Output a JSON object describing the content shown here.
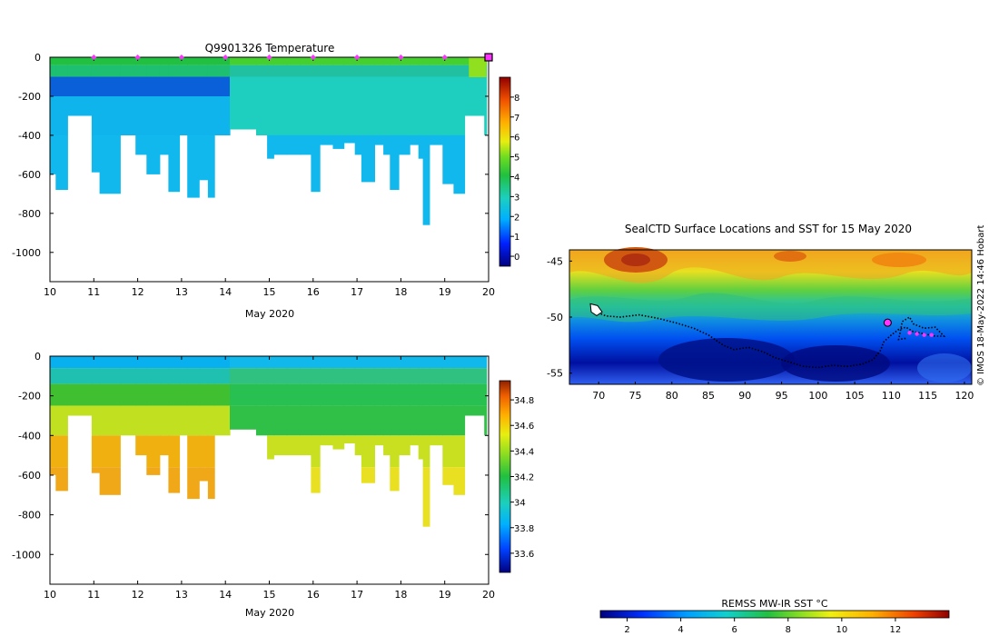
{
  "colors": {
    "accent_marker": "#ff33ff",
    "frame": "#000000"
  },
  "chart_data": [
    {
      "id": "temperature",
      "type": "heatmap",
      "title": "Q9901326  Temperature",
      "xlabel": "May 2020",
      "ylabel": "",
      "x_ticks": [
        10,
        11,
        12,
        13,
        14,
        15,
        16,
        17,
        18,
        19,
        20
      ],
      "y_ticks": [
        0,
        -200,
        -400,
        -600,
        -800,
        -1000
      ],
      "xlim": [
        10,
        20
      ],
      "ylim": [
        -1150,
        0
      ],
      "colorbar": {
        "range": [
          -0.5,
          9
        ],
        "ticks": [
          0,
          1,
          2,
          3,
          4,
          5,
          6,
          7,
          8
        ]
      },
      "profile_markers_x": [
        11,
        12,
        13,
        14,
        15,
        16,
        17,
        18,
        19
      ],
      "current_marker_x": 20,
      "profiles": [
        {
          "t": 10.0,
          "d": 600
        },
        {
          "t": 10.13,
          "d": 680
        },
        {
          "t": 10.4,
          "d": 300
        },
        {
          "t": 10.95,
          "d": 590
        },
        {
          "t": 11.13,
          "d": 700
        },
        {
          "t": 11.6,
          "d": 400
        },
        {
          "t": 11.95,
          "d": 500
        },
        {
          "t": 12.2,
          "d": 600
        },
        {
          "t": 12.5,
          "d": 500
        },
        {
          "t": 12.7,
          "d": 690
        },
        {
          "t": 12.95,
          "d": 400
        },
        {
          "t": 13.13,
          "d": 720
        },
        {
          "t": 13.4,
          "d": 630
        },
        {
          "t": 13.6,
          "d": 720
        },
        {
          "t": 13.75,
          "d": 400
        },
        {
          "t": 14.1,
          "d": 370
        },
        {
          "t": 14.7,
          "d": 400
        },
        {
          "t": 14.95,
          "d": 520
        },
        {
          "t": 15.1,
          "d": 500
        },
        {
          "t": 15.4,
          "d": 500
        },
        {
          "t": 15.7,
          "d": 500
        },
        {
          "t": 15.95,
          "d": 690
        },
        {
          "t": 16.15,
          "d": 450
        },
        {
          "t": 16.45,
          "d": 470
        },
        {
          "t": 16.7,
          "d": 440
        },
        {
          "t": 16.95,
          "d": 500
        },
        {
          "t": 17.1,
          "d": 640
        },
        {
          "t": 17.4,
          "d": 450
        },
        {
          "t": 17.6,
          "d": 500
        },
        {
          "t": 17.75,
          "d": 680
        },
        {
          "t": 17.95,
          "d": 500
        },
        {
          "t": 18.2,
          "d": 450
        },
        {
          "t": 18.4,
          "d": 520
        },
        {
          "t": 18.5,
          "d": 860
        },
        {
          "t": 18.65,
          "d": 450
        },
        {
          "t": 18.95,
          "d": 650
        },
        {
          "t": 19.2,
          "d": 700
        },
        {
          "t": 19.45,
          "d": 300
        },
        {
          "t": 19.9,
          "d": 400
        }
      ]
    },
    {
      "id": "salinity",
      "type": "heatmap",
      "title": "",
      "xlabel": "May 2020",
      "ylabel": "",
      "x_ticks": [
        10,
        11,
        12,
        13,
        14,
        15,
        16,
        17,
        18,
        19,
        20
      ],
      "y_ticks": [
        0,
        -200,
        -400,
        -600,
        -800,
        -1000
      ],
      "xlim": [
        10,
        20
      ],
      "ylim": [
        -1150,
        0
      ],
      "colorbar": {
        "range": [
          33.45,
          34.95
        ],
        "ticks": [
          33.6,
          33.8,
          34,
          34.2,
          34.4,
          34.6,
          34.8
        ]
      }
    },
    {
      "id": "sst_map",
      "type": "heatmap",
      "title": "SealCTD Surface Locations and SST for 15 May 2020",
      "xlabel": "",
      "ylabel": "",
      "x_ticks": [
        70,
        75,
        80,
        85,
        90,
        95,
        100,
        105,
        110,
        115,
        120
      ],
      "y_ticks": [
        -45,
        -50,
        -55
      ],
      "xlim": [
        66,
        121
      ],
      "ylim": [
        -56,
        -44
      ],
      "colorbar": {
        "label": "REMSS MW-IR SST °C",
        "range": [
          1,
          14
        ],
        "ticks": [
          2,
          4,
          6,
          8,
          10,
          12
        ]
      },
      "track": [
        [
          69.5,
          -49.5
        ],
        [
          71.0,
          -49.9
        ],
        [
          73.0,
          -50.0
        ],
        [
          75.5,
          -49.8
        ],
        [
          78.0,
          -50.1
        ],
        [
          80.5,
          -50.5
        ],
        [
          83.0,
          -51.0
        ],
        [
          85.0,
          -51.6
        ],
        [
          87.0,
          -52.5
        ],
        [
          88.5,
          -52.9
        ],
        [
          90.5,
          -52.7
        ],
        [
          92.5,
          -53.1
        ],
        [
          94.0,
          -53.6
        ],
        [
          96.0,
          -54.0
        ],
        [
          98.0,
          -54.4
        ],
        [
          100.0,
          -54.5
        ],
        [
          102.0,
          -54.3
        ],
        [
          104.0,
          -54.4
        ],
        [
          106.0,
          -54.2
        ],
        [
          107.5,
          -53.8
        ],
        [
          108.5,
          -53.0
        ],
        [
          109.0,
          -52.2
        ],
        [
          110.0,
          -51.6
        ],
        [
          111.0,
          -51.1
        ],
        [
          112.0,
          -50.9
        ],
        [
          113.0,
          -51.3
        ],
        [
          114.5,
          -51.5
        ],
        [
          116.0,
          -51.7
        ],
        [
          117.2,
          -51.7
        ],
        [
          116.0,
          -50.9
        ],
        [
          114.5,
          -51.0
        ],
        [
          113.0,
          -50.6
        ],
        [
          112.5,
          -50.0
        ],
        [
          111.5,
          -50.4
        ],
        [
          111.0,
          -52.0
        ],
        [
          112.0,
          -51.9
        ]
      ],
      "island_lonlat": [
        69.6,
        -49.3
      ],
      "magenta_points": [
        [
          109.5,
          -50.5
        ],
        [
          112.5,
          -51.4
        ],
        [
          113.5,
          -51.5
        ],
        [
          114.5,
          -51.6
        ],
        [
          115.5,
          -51.6
        ]
      ]
    }
  ],
  "watermark": "© IMOS 18-May-2022 14:46 Hobart"
}
